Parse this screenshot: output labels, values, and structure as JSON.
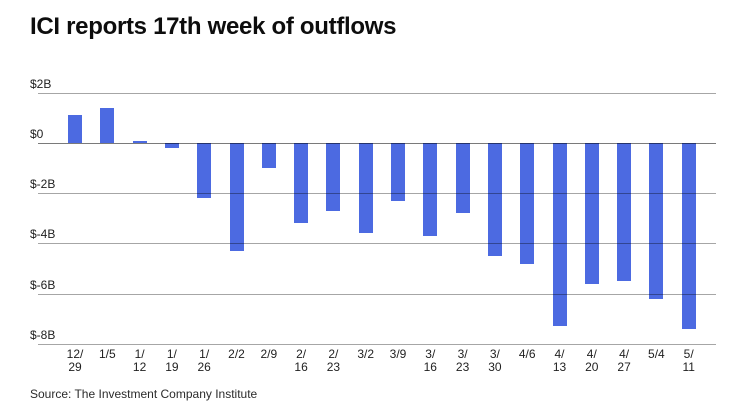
{
  "title": "ICI reports 17th week of outflows",
  "source": "Source: The Investment Company Institute",
  "chart_data": {
    "type": "bar",
    "title": "ICI reports 17th week of outflows",
    "categories": [
      "12/29",
      "1/5",
      "1/12",
      "1/19",
      "1/26",
      "2/2",
      "2/9",
      "2/16",
      "2/23",
      "3/2",
      "3/9",
      "3/16",
      "3/23",
      "3/30",
      "4/6",
      "4/13",
      "4/20",
      "4/27",
      "5/4",
      "5/11"
    ],
    "values": [
      1.1,
      1.4,
      0.1,
      -0.2,
      -2.2,
      -4.3,
      -1.0,
      -3.2,
      -2.7,
      -3.6,
      -2.3,
      -3.7,
      -2.8,
      -4.5,
      -4.8,
      -7.3,
      -5.6,
      -5.5,
      -6.2,
      -7.4
    ],
    "value_unit": "billions USD",
    "xlabel": "",
    "ylabel": "",
    "ylim": [
      -8,
      2
    ],
    "y_ticks": [
      {
        "value": 2,
        "label": "$2B"
      },
      {
        "value": 0,
        "label": "$0"
      },
      {
        "value": -2,
        "label": "$-2B"
      },
      {
        "value": -4,
        "label": "$-4B"
      },
      {
        "value": -6,
        "label": "$-6B"
      },
      {
        "value": -8,
        "label": "$-8B"
      }
    ],
    "grid": true,
    "legend": false,
    "colors": {
      "bar": "#4c6ae1",
      "gridline": "#9a9a9a",
      "title_text": "#0d0d0d",
      "tick_text": "#1f1f1f"
    }
  }
}
